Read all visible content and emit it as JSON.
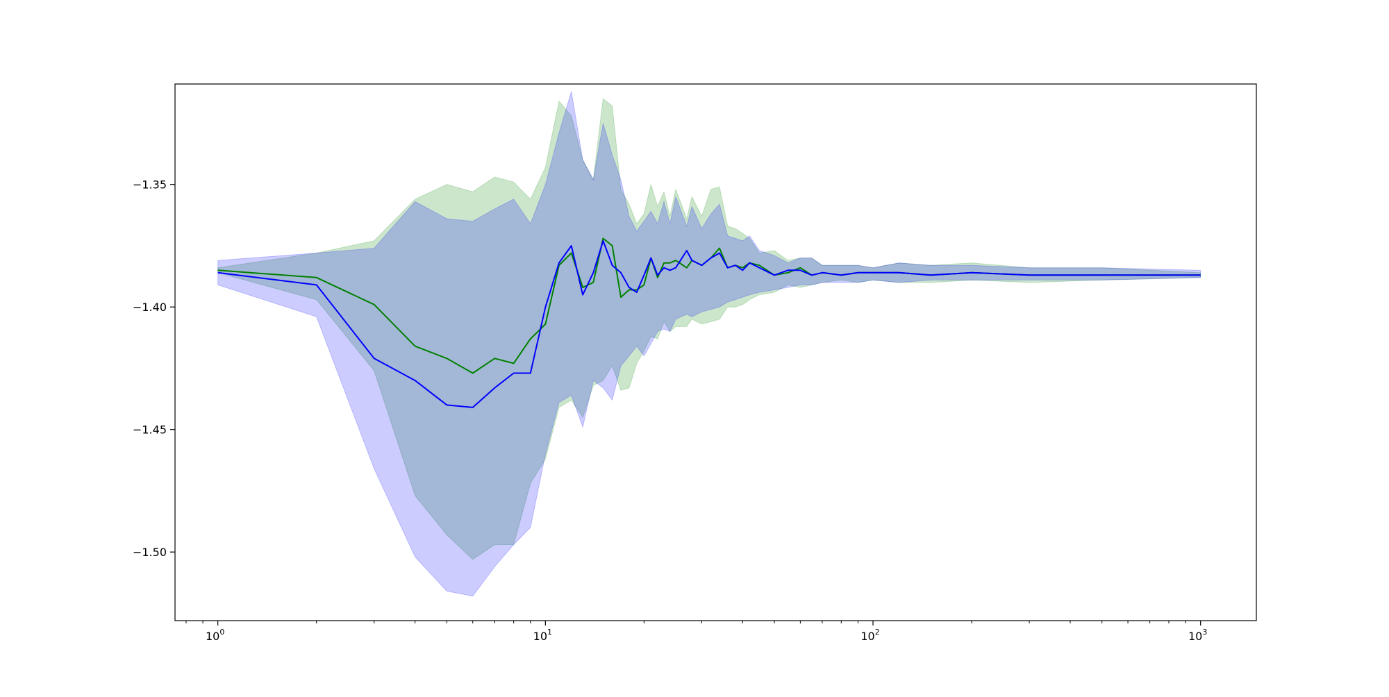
{
  "chart_data": {
    "type": "line",
    "title": "",
    "xlabel": "",
    "ylabel": "",
    "xscale": "log",
    "xlim": [
      0.74,
      1480
    ],
    "ylim": [
      -1.528,
      -1.309
    ],
    "grid": false,
    "legend": "none",
    "x_ticks": [
      {
        "value": 1,
        "base": "10",
        "exp": "0"
      },
      {
        "value": 10,
        "base": "10",
        "exp": "1"
      },
      {
        "value": 100,
        "base": "10",
        "exp": "2"
      },
      {
        "value": 1000,
        "base": "10",
        "exp": "3"
      }
    ],
    "y_ticks": [
      {
        "value": -1.35,
        "label": "−1.35"
      },
      {
        "value": -1.4,
        "label": "−1.40"
      },
      {
        "value": -1.45,
        "label": "−1.45"
      },
      {
        "value": -1.5,
        "label": "−1.50"
      }
    ],
    "series": [
      {
        "color": "#008000",
        "band_color": "#008000",
        "band_opacity": 0.2,
        "points": [
          [
            1,
            -1.385
          ],
          [
            2,
            -1.388
          ],
          [
            3,
            -1.399
          ],
          [
            4,
            -1.416
          ],
          [
            5,
            -1.421
          ],
          [
            6,
            -1.427
          ],
          [
            7,
            -1.421
          ],
          [
            8,
            -1.423
          ],
          [
            9,
            -1.413
          ],
          [
            10,
            -1.407
          ],
          [
            11,
            -1.383
          ],
          [
            12,
            -1.378
          ],
          [
            13,
            -1.392
          ],
          [
            14,
            -1.39
          ],
          [
            15,
            -1.372
          ],
          [
            16,
            -1.375
          ],
          [
            17,
            -1.396
          ],
          [
            18,
            -1.393
          ],
          [
            19,
            -1.393
          ],
          [
            20,
            -1.391
          ],
          [
            21,
            -1.38
          ],
          [
            22,
            -1.388
          ],
          [
            23,
            -1.382
          ],
          [
            24,
            -1.382
          ],
          [
            25,
            -1.381
          ],
          [
            27,
            -1.384
          ],
          [
            28,
            -1.381
          ],
          [
            30,
            -1.383
          ],
          [
            32,
            -1.38
          ],
          [
            34,
            -1.376
          ],
          [
            36,
            -1.384
          ],
          [
            38,
            -1.383
          ],
          [
            40,
            -1.384
          ],
          [
            42,
            -1.382
          ],
          [
            45,
            -1.383
          ],
          [
            50,
            -1.387
          ],
          [
            55,
            -1.386
          ],
          [
            60,
            -1.384
          ],
          [
            65,
            -1.387
          ],
          [
            70,
            -1.386
          ],
          [
            80,
            -1.387
          ],
          [
            90,
            -1.386
          ],
          [
            100,
            -1.386
          ],
          [
            120,
            -1.386
          ],
          [
            150,
            -1.387
          ],
          [
            200,
            -1.386
          ],
          [
            300,
            -1.387
          ],
          [
            500,
            -1.387
          ],
          [
            1000,
            -1.387
          ]
        ],
        "band_upper": [
          [
            1,
            -1.384
          ],
          [
            2,
            -1.378
          ],
          [
            3,
            -1.373
          ],
          [
            4,
            -1.356
          ],
          [
            5,
            -1.35
          ],
          [
            6,
            -1.353
          ],
          [
            7,
            -1.347
          ],
          [
            8,
            -1.349
          ],
          [
            9,
            -1.356
          ],
          [
            10,
            -1.343
          ],
          [
            11,
            -1.316
          ],
          [
            12,
            -1.322
          ],
          [
            13,
            -1.34
          ],
          [
            14,
            -1.348
          ],
          [
            15,
            -1.315
          ],
          [
            16,
            -1.318
          ],
          [
            17,
            -1.352
          ],
          [
            18,
            -1.358
          ],
          [
            19,
            -1.366
          ],
          [
            20,
            -1.362
          ],
          [
            21,
            -1.35
          ],
          [
            22,
            -1.359
          ],
          [
            23,
            -1.353
          ],
          [
            24,
            -1.363
          ],
          [
            25,
            -1.352
          ],
          [
            27,
            -1.364
          ],
          [
            28,
            -1.355
          ],
          [
            30,
            -1.363
          ],
          [
            32,
            -1.352
          ],
          [
            34,
            -1.351
          ],
          [
            36,
            -1.367
          ],
          [
            38,
            -1.368
          ],
          [
            40,
            -1.37
          ],
          [
            42,
            -1.372
          ],
          [
            45,
            -1.378
          ],
          [
            50,
            -1.377
          ],
          [
            55,
            -1.381
          ],
          [
            60,
            -1.38
          ],
          [
            65,
            -1.38
          ],
          [
            70,
            -1.383
          ],
          [
            80,
            -1.383
          ],
          [
            90,
            -1.383
          ],
          [
            100,
            -1.384
          ],
          [
            120,
            -1.382
          ],
          [
            150,
            -1.383
          ],
          [
            200,
            -1.382
          ],
          [
            300,
            -1.384
          ],
          [
            500,
            -1.384
          ],
          [
            1000,
            -1.386
          ]
        ],
        "band_lower": [
          [
            1,
            -1.386
          ],
          [
            2,
            -1.397
          ],
          [
            3,
            -1.426
          ],
          [
            4,
            -1.477
          ],
          [
            5,
            -1.493
          ],
          [
            6,
            -1.503
          ],
          [
            7,
            -1.497
          ],
          [
            8,
            -1.497
          ],
          [
            9,
            -1.472
          ],
          [
            10,
            -1.462
          ],
          [
            11,
            -1.441
          ],
          [
            12,
            -1.438
          ],
          [
            13,
            -1.445
          ],
          [
            14,
            -1.432
          ],
          [
            15,
            -1.43
          ],
          [
            16,
            -1.424
          ],
          [
            17,
            -1.434
          ],
          [
            18,
            -1.433
          ],
          [
            19,
            -1.423
          ],
          [
            20,
            -1.418
          ],
          [
            21,
            -1.412
          ],
          [
            22,
            -1.413
          ],
          [
            23,
            -1.406
          ],
          [
            24,
            -1.41
          ],
          [
            25,
            -1.408
          ],
          [
            27,
            -1.408
          ],
          [
            28,
            -1.405
          ],
          [
            30,
            -1.407
          ],
          [
            32,
            -1.406
          ],
          [
            34,
            -1.405
          ],
          [
            36,
            -1.4
          ],
          [
            38,
            -1.4
          ],
          [
            40,
            -1.399
          ],
          [
            42,
            -1.397
          ],
          [
            45,
            -1.395
          ],
          [
            50,
            -1.394
          ],
          [
            55,
            -1.391
          ],
          [
            60,
            -1.392
          ],
          [
            65,
            -1.391
          ],
          [
            70,
            -1.39
          ],
          [
            80,
            -1.389
          ],
          [
            90,
            -1.39
          ],
          [
            100,
            -1.389
          ],
          [
            120,
            -1.39
          ],
          [
            150,
            -1.39
          ],
          [
            200,
            -1.389
          ],
          [
            300,
            -1.39
          ],
          [
            500,
            -1.389
          ],
          [
            1000,
            -1.388
          ]
        ]
      },
      {
        "color": "#0000ff",
        "band_color": "#0000ff",
        "band_opacity": 0.2,
        "points": [
          [
            1,
            -1.386
          ],
          [
            2,
            -1.391
          ],
          [
            3,
            -1.421
          ],
          [
            4,
            -1.43
          ],
          [
            5,
            -1.44
          ],
          [
            6,
            -1.441
          ],
          [
            7,
            -1.433
          ],
          [
            8,
            -1.427
          ],
          [
            9,
            -1.427
          ],
          [
            10,
            -1.4
          ],
          [
            11,
            -1.382
          ],
          [
            12,
            -1.375
          ],
          [
            13,
            -1.395
          ],
          [
            14,
            -1.386
          ],
          [
            15,
            -1.373
          ],
          [
            16,
            -1.383
          ],
          [
            17,
            -1.386
          ],
          [
            18,
            -1.392
          ],
          [
            19,
            -1.394
          ],
          [
            20,
            -1.387
          ],
          [
            21,
            -1.38
          ],
          [
            22,
            -1.387
          ],
          [
            23,
            -1.384
          ],
          [
            24,
            -1.385
          ],
          [
            25,
            -1.384
          ],
          [
            27,
            -1.377
          ],
          [
            28,
            -1.381
          ],
          [
            30,
            -1.383
          ],
          [
            32,
            -1.38
          ],
          [
            34,
            -1.378
          ],
          [
            36,
            -1.384
          ],
          [
            38,
            -1.383
          ],
          [
            40,
            -1.385
          ],
          [
            42,
            -1.382
          ],
          [
            45,
            -1.384
          ],
          [
            50,
            -1.387
          ],
          [
            55,
            -1.385
          ],
          [
            60,
            -1.385
          ],
          [
            65,
            -1.387
          ],
          [
            70,
            -1.386
          ],
          [
            80,
            -1.387
          ],
          [
            90,
            -1.386
          ],
          [
            100,
            -1.386
          ],
          [
            120,
            -1.386
          ],
          [
            150,
            -1.387
          ],
          [
            200,
            -1.386
          ],
          [
            300,
            -1.387
          ],
          [
            500,
            -1.387
          ],
          [
            1000,
            -1.387
          ]
        ],
        "band_upper": [
          [
            1,
            -1.381
          ],
          [
            2,
            -1.378
          ],
          [
            3,
            -1.376
          ],
          [
            4,
            -1.357
          ],
          [
            5,
            -1.364
          ],
          [
            6,
            -1.365
          ],
          [
            7,
            -1.36
          ],
          [
            8,
            -1.356
          ],
          [
            9,
            -1.366
          ],
          [
            10,
            -1.35
          ],
          [
            11,
            -1.329
          ],
          [
            12,
            -1.312
          ],
          [
            13,
            -1.34
          ],
          [
            14,
            -1.348
          ],
          [
            15,
            -1.325
          ],
          [
            16,
            -1.338
          ],
          [
            17,
            -1.348
          ],
          [
            18,
            -1.363
          ],
          [
            19,
            -1.369
          ],
          [
            20,
            -1.365
          ],
          [
            21,
            -1.361
          ],
          [
            22,
            -1.366
          ],
          [
            23,
            -1.357
          ],
          [
            24,
            -1.366
          ],
          [
            25,
            -1.355
          ],
          [
            27,
            -1.367
          ],
          [
            28,
            -1.359
          ],
          [
            30,
            -1.368
          ],
          [
            32,
            -1.362
          ],
          [
            34,
            -1.358
          ],
          [
            36,
            -1.371
          ],
          [
            38,
            -1.372
          ],
          [
            40,
            -1.373
          ],
          [
            42,
            -1.371
          ],
          [
            45,
            -1.377
          ],
          [
            50,
            -1.379
          ],
          [
            55,
            -1.382
          ],
          [
            60,
            -1.38
          ],
          [
            65,
            -1.38
          ],
          [
            70,
            -1.383
          ],
          [
            80,
            -1.383
          ],
          [
            90,
            -1.383
          ],
          [
            100,
            -1.384
          ],
          [
            120,
            -1.382
          ],
          [
            150,
            -1.383
          ],
          [
            200,
            -1.383
          ],
          [
            300,
            -1.384
          ],
          [
            500,
            -1.384
          ],
          [
            1000,
            -1.385
          ]
        ],
        "band_lower": [
          [
            1,
            -1.391
          ],
          [
            2,
            -1.404
          ],
          [
            3,
            -1.466
          ],
          [
            4,
            -1.502
          ],
          [
            5,
            -1.516
          ],
          [
            6,
            -1.518
          ],
          [
            7,
            -1.506
          ],
          [
            8,
            -1.497
          ],
          [
            9,
            -1.49
          ],
          [
            10,
            -1.46
          ],
          [
            11,
            -1.439
          ],
          [
            12,
            -1.436
          ],
          [
            13,
            -1.449
          ],
          [
            14,
            -1.43
          ],
          [
            15,
            -1.433
          ],
          [
            16,
            -1.438
          ],
          [
            17,
            -1.424
          ],
          [
            18,
            -1.42
          ],
          [
            19,
            -1.416
          ],
          [
            20,
            -1.42
          ],
          [
            21,
            -1.415
          ],
          [
            22,
            -1.41
          ],
          [
            23,
            -1.409
          ],
          [
            24,
            -1.41
          ],
          [
            25,
            -1.405
          ],
          [
            27,
            -1.403
          ],
          [
            28,
            -1.404
          ],
          [
            30,
            -1.402
          ],
          [
            32,
            -1.401
          ],
          [
            34,
            -1.4
          ],
          [
            36,
            -1.398
          ],
          [
            38,
            -1.397
          ],
          [
            40,
            -1.396
          ],
          [
            42,
            -1.395
          ],
          [
            45,
            -1.394
          ],
          [
            50,
            -1.393
          ],
          [
            55,
            -1.392
          ],
          [
            60,
            -1.391
          ],
          [
            65,
            -1.391
          ],
          [
            70,
            -1.39
          ],
          [
            80,
            -1.39
          ],
          [
            90,
            -1.39
          ],
          [
            100,
            -1.389
          ],
          [
            120,
            -1.39
          ],
          [
            150,
            -1.389
          ],
          [
            200,
            -1.389
          ],
          [
            300,
            -1.389
          ],
          [
            500,
            -1.389
          ],
          [
            1000,
            -1.388
          ]
        ]
      }
    ]
  }
}
